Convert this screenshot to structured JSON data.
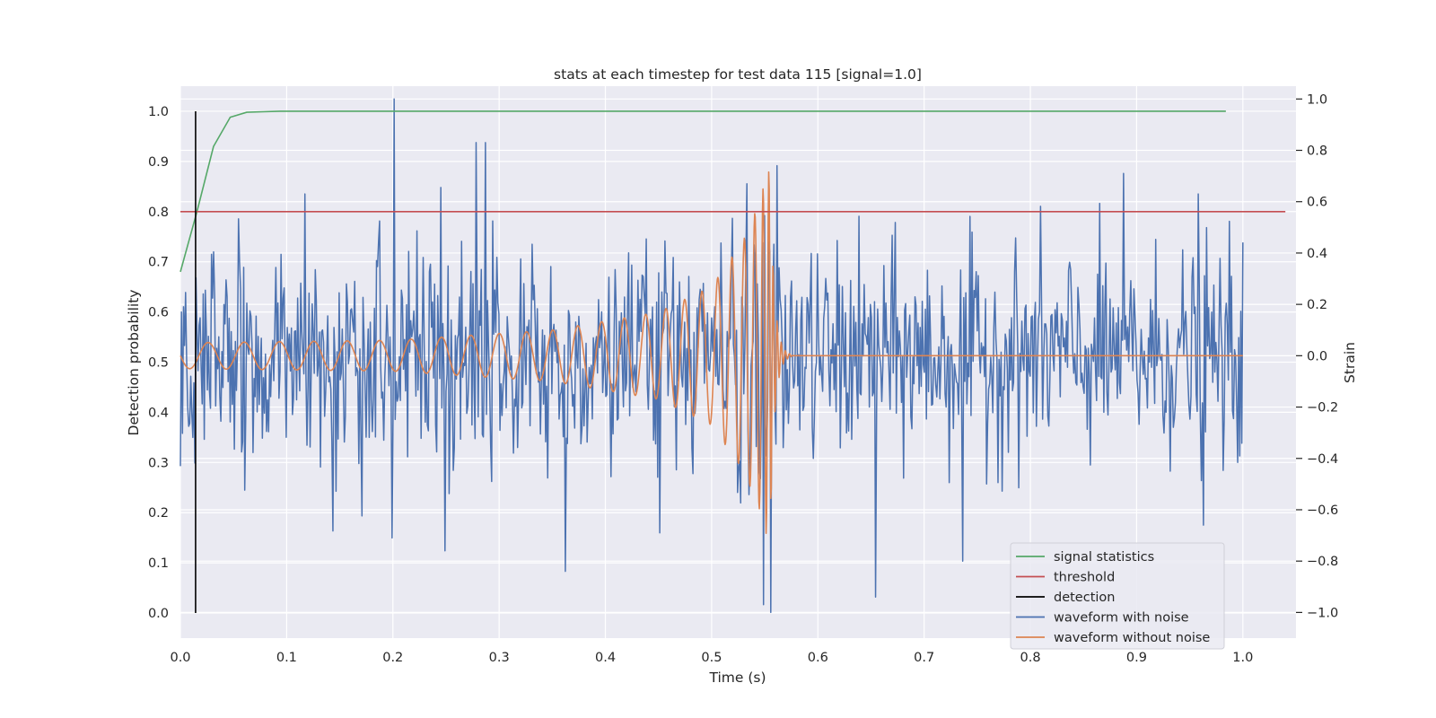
{
  "chart_data": {
    "type": "line",
    "title": "stats at each timestep for test data 115 [signal=1.0]",
    "xlabel": "Time (s)",
    "ylabel_left": "Detection probability",
    "ylabel_right": "Strain",
    "xlim": [
      0.0,
      1.05
    ],
    "ylim_left": [
      -0.05,
      1.05
    ],
    "ylim_right": [
      -1.1,
      1.05
    ],
    "x_ticks": [
      0.0,
      0.1,
      0.2,
      0.3,
      0.4,
      0.5,
      0.6,
      0.7,
      0.8,
      0.9,
      1.0
    ],
    "x_tick_labels": [
      "0.0",
      "0.1",
      "0.2",
      "0.3",
      "0.4",
      "0.5",
      "0.6",
      "0.7",
      "0.8",
      "0.9",
      "1.0"
    ],
    "y_left_ticks": [
      0.0,
      0.1,
      0.2,
      0.3,
      0.4,
      0.5,
      0.6,
      0.7,
      0.8,
      0.9,
      1.0
    ],
    "y_left_tick_labels": [
      "0.0",
      "0.1",
      "0.2",
      "0.3",
      "0.4",
      "0.5",
      "0.6",
      "0.7",
      "0.8",
      "0.9",
      "1.0"
    ],
    "y_right_ticks": [
      -1.0,
      -0.8,
      -0.6,
      -0.4,
      -0.2,
      0.0,
      0.2,
      0.4,
      0.6,
      0.8,
      1.0
    ],
    "y_right_tick_labels": [
      "−1.0",
      "−0.8",
      "−0.6",
      "−0.4",
      "−0.2",
      "0.0",
      "0.2",
      "0.4",
      "0.6",
      "0.8",
      "1.0"
    ],
    "grid": true,
    "legend_position": "lower-right",
    "series": [
      {
        "name": "signal statistics",
        "axis": "left",
        "color": "#55a868",
        "x": [
          0.0,
          0.0156,
          0.0312,
          0.0469,
          0.0625,
          0.0781,
          0.0938,
          0.2,
          0.4,
          0.6,
          0.8,
          0.984
        ],
        "y": [
          0.68,
          0.8,
          0.93,
          0.988,
          0.998,
          0.999,
          1.0,
          1.0,
          1.0,
          1.0,
          1.0,
          1.0
        ]
      },
      {
        "name": "threshold",
        "axis": "left",
        "color": "#c44e52",
        "x": [
          0.0,
          1.04
        ],
        "y": [
          0.8,
          0.8
        ]
      },
      {
        "name": "detection",
        "axis": "left",
        "color": "#000000",
        "x": [
          0.0143,
          0.0143
        ],
        "y": [
          0.0,
          1.0
        ]
      },
      {
        "name": "waveform with noise",
        "axis": "right",
        "color": "#4c72b0",
        "x_start": 0.0,
        "x_end": 1.0,
        "noise_sigma": 0.2,
        "peaks": [
          {
            "x": 0.201,
            "y": 1.0
          },
          {
            "x": 0.278,
            "y": 0.83
          },
          {
            "x": 0.287,
            "y": 0.83
          },
          {
            "x": 0.562,
            "y": 0.74
          },
          {
            "x": 0.533,
            "y": 0.67
          },
          {
            "x": 0.888,
            "y": 0.71
          },
          {
            "x": 0.958,
            "y": 0.63
          },
          {
            "x": 0.117,
            "y": 0.63
          },
          {
            "x": 0.556,
            "y": -1.0
          },
          {
            "x": 0.549,
            "y": -0.97
          },
          {
            "x": 0.654,
            "y": -0.94
          },
          {
            "x": 0.362,
            "y": -0.84
          },
          {
            "x": 0.249,
            "y": -0.76
          },
          {
            "x": 0.736,
            "y": -0.8
          },
          {
            "x": 0.963,
            "y": -0.66
          },
          {
            "x": 0.451,
            "y": -0.69
          }
        ]
      },
      {
        "name": "waveform without noise",
        "axis": "right",
        "color": "#dd8452",
        "x_start": 0.0,
        "x_end": 1.0,
        "merger_time": 0.555,
        "ringdown_end": 0.575,
        "envelope": [
          {
            "t": 0.0,
            "a": 0.05
          },
          {
            "t": 0.2,
            "a": 0.06
          },
          {
            "t": 0.35,
            "a": 0.1
          },
          {
            "t": 0.45,
            "a": 0.17
          },
          {
            "t": 0.5,
            "a": 0.27
          },
          {
            "t": 0.53,
            "a": 0.45
          },
          {
            "t": 0.545,
            "a": 0.6
          },
          {
            "t": 0.553,
            "a": 0.72
          },
          {
            "t": 0.555,
            "a": 0.73
          }
        ]
      }
    ],
    "legend": [
      {
        "label": "signal statistics",
        "color": "#55a868"
      },
      {
        "label": "threshold",
        "color": "#c44e52"
      },
      {
        "label": "detection",
        "color": "#000000"
      },
      {
        "label": "waveform with noise",
        "color": "#4c72b0"
      },
      {
        "label": "waveform without noise",
        "color": "#dd8452"
      }
    ],
    "colors": {
      "plot_background": "#eaeaf2",
      "grid": "#ffffff",
      "text": "#262626"
    }
  }
}
